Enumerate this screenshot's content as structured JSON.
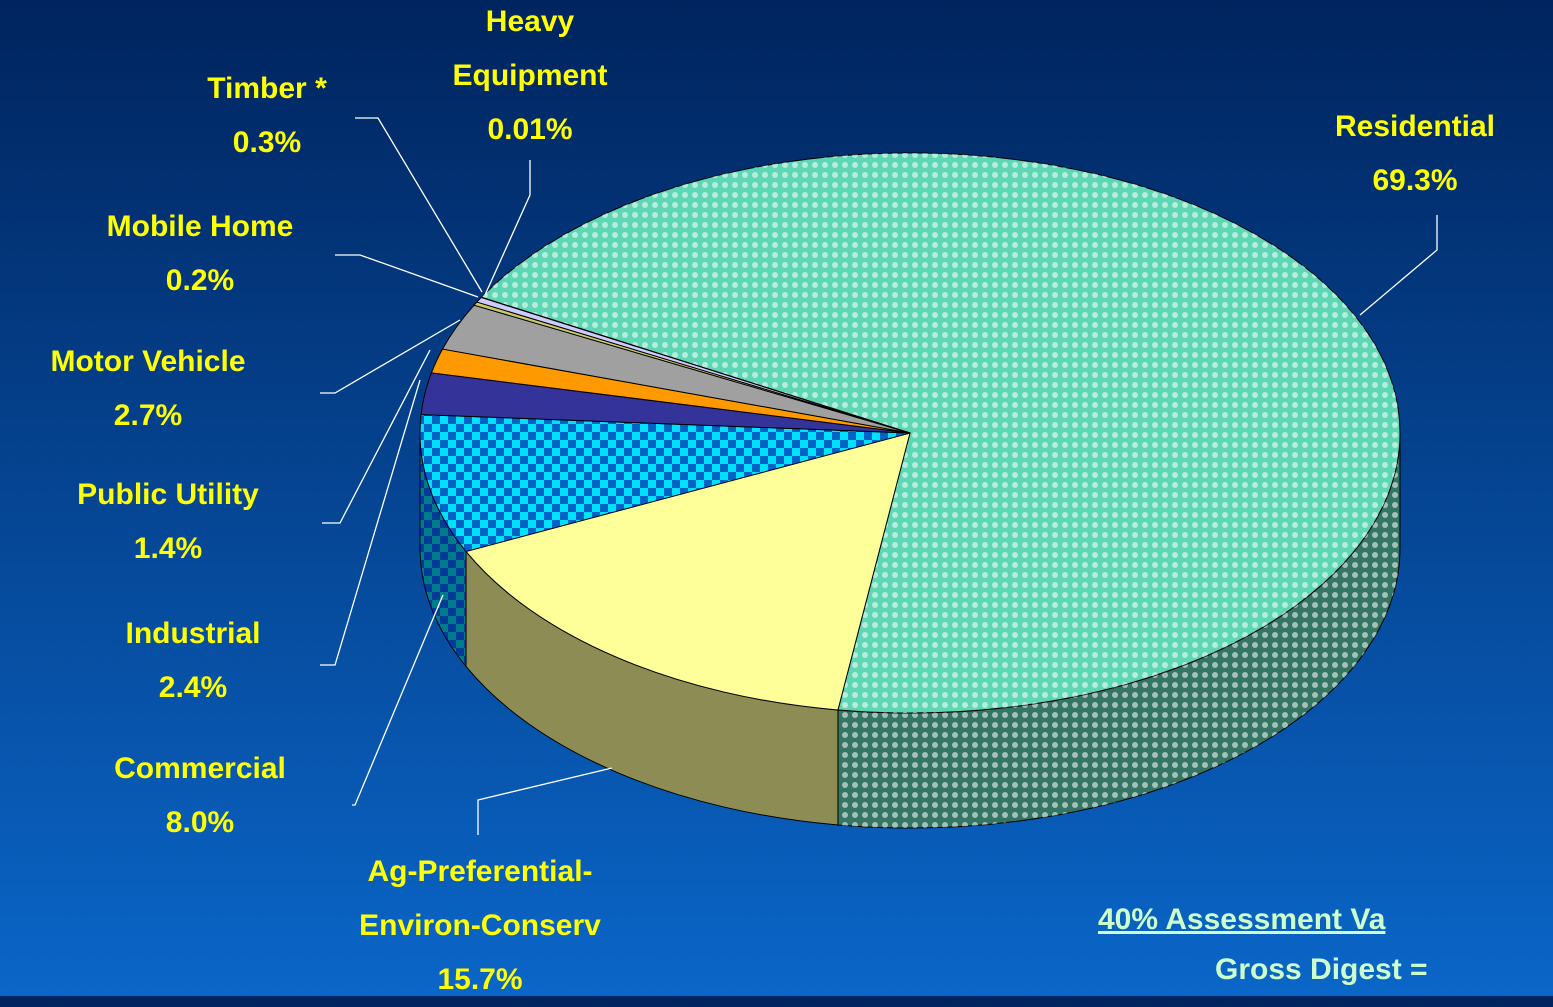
{
  "chart_data": {
    "type": "pie",
    "categories": [
      "Residential",
      "Ag-Preferential-Environ-Conserv",
      "Commercial",
      "Industrial",
      "Public Utility",
      "Motor Vehicle",
      "Mobile Home",
      "Timber *",
      "Heavy Equipment"
    ],
    "values": [
      69.3,
      15.7,
      8.0,
      2.4,
      1.4,
      2.7,
      0.2,
      0.3,
      0.01
    ],
    "value_labels": [
      "69.3%",
      "15.7%",
      "8.0%",
      "2.4%",
      "1.4%",
      "2.7%",
      "0.2%",
      "0.3%",
      "0.01%"
    ],
    "colors": [
      "#5fd6b4",
      "#ffff99",
      "#00e0ff",
      "#333399",
      "#ff9900",
      "#a0a0a0",
      "#cccc66",
      "#ccccff",
      "#ffffff"
    ],
    "annotations": [
      "40% Assessment Va",
      "Gross Digest ="
    ]
  }
}
